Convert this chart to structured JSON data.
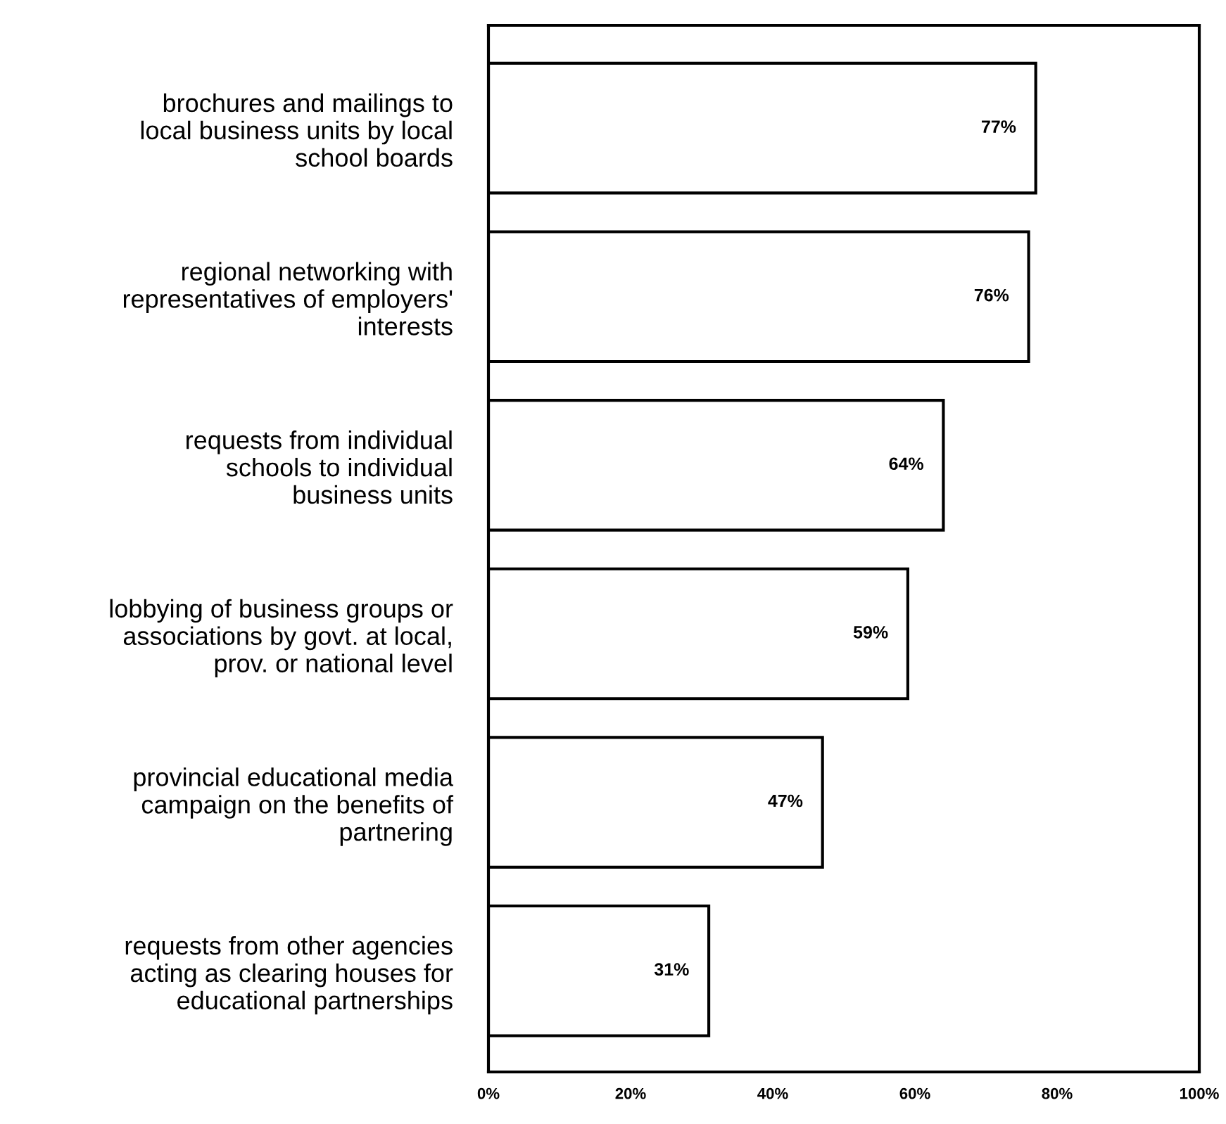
{
  "chart_data": {
    "type": "bar",
    "orientation": "horizontal",
    "categories": [
      "brochures and mailings to\nlocal business units by local\nschool boards",
      "regional networking with\nrepresentatives of employers'\ninterests",
      "requests from individual\nschools to individual\nbusiness units",
      "lobbying of business groups or\nassociations by govt. at local,\nprov. or national level",
      "provincial educational media\ncampaign on the benefits of\npartnering",
      "requests from other agencies\nacting as clearing houses for\neducational partnerships"
    ],
    "values": [
      77,
      76,
      64,
      59,
      47,
      31
    ],
    "value_labels": [
      "77%",
      "76%",
      "64%",
      "59%",
      "47%",
      "31%"
    ],
    "color": "#ffffff",
    "xlim": [
      0,
      100
    ],
    "xticks": [
      {
        "value": 0,
        "label": "0%"
      },
      {
        "value": 20,
        "label": "20%"
      },
      {
        "value": 40,
        "label": "40%"
      },
      {
        "value": 60,
        "label": "60%"
      },
      {
        "value": 80,
        "label": "80%"
      },
      {
        "value": 100,
        "label": "100%"
      }
    ],
    "grid": false
  }
}
